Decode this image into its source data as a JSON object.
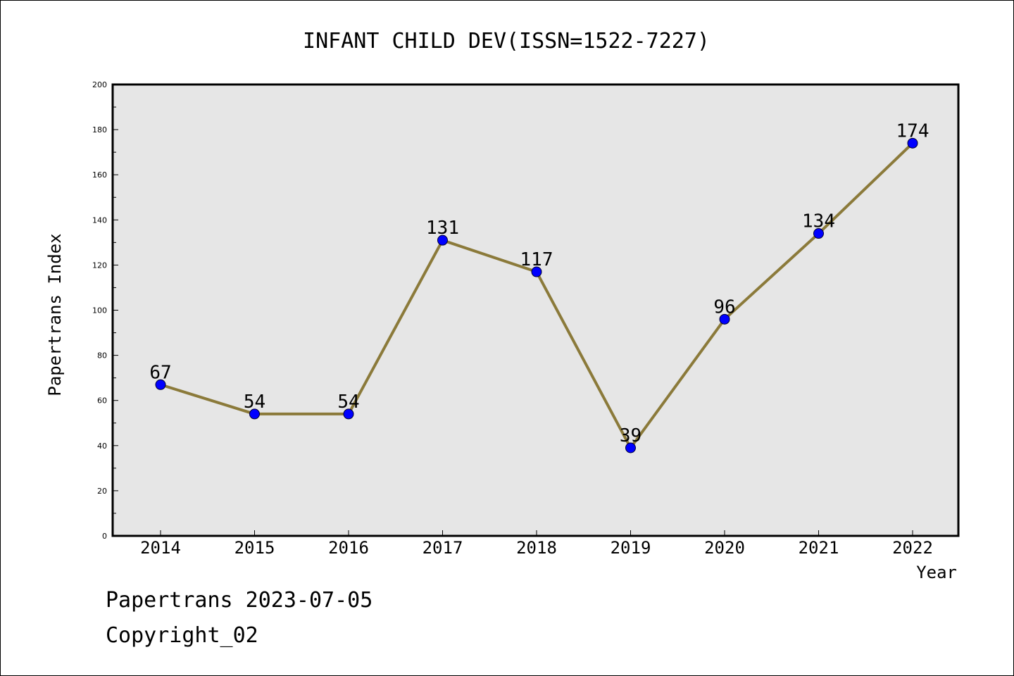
{
  "chart_data": {
    "type": "line",
    "title": "INFANT CHILD DEV(ISSN=1522-7227)",
    "xlabel": "Year",
    "ylabel": "Papertrans Index",
    "categories": [
      "2014",
      "2015",
      "2016",
      "2017",
      "2018",
      "2019",
      "2020",
      "2021",
      "2022"
    ],
    "series": [
      {
        "values": [
          67,
          54,
          54,
          131,
          117,
          39,
          96,
          134,
          174
        ]
      }
    ],
    "data_labels": [
      "67",
      "54",
      "54",
      "131",
      "117",
      "39",
      "96",
      "134",
      "174"
    ],
    "ylim": [
      0,
      200
    ],
    "y_ticks": [
      "0",
      "20",
      "40",
      "60",
      "80",
      "100",
      "120",
      "140",
      "160",
      "180",
      "200"
    ],
    "grid": false,
    "legend": "none",
    "colors": {
      "line": "#8b7a3a",
      "marker": "#0000ff",
      "plot_background": "#e6e6e6",
      "axes": "#000000"
    }
  },
  "footer": {
    "date_line": "Papertrans 2023-07-05",
    "copyright_line": "Copyright_02"
  }
}
